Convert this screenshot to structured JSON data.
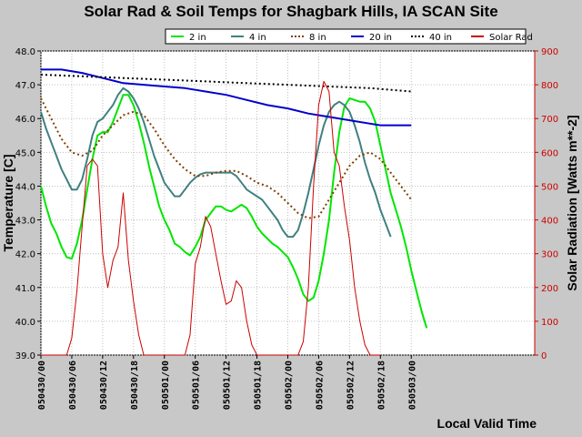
{
  "chart_data": {
    "type": "line",
    "title": "Solar Rad & Soil Temps for Shagbark Hills, IA SCAN Site",
    "xlabel": "Local Valid Time",
    "ylabel": "Temperature [C]",
    "y2label": "Solar Radiation [Watts m**-2]",
    "xlim": [
      0,
      96
    ],
    "ylim": [
      39.0,
      48.0
    ],
    "y2lim": [
      0,
      900
    ],
    "x_ticks": [
      {
        "x": 0,
        "label": "050430/00"
      },
      {
        "x": 6,
        "label": "050430/06"
      },
      {
        "x": 12,
        "label": "050430/12"
      },
      {
        "x": 18,
        "label": "050430/18"
      },
      {
        "x": 24,
        "label": "050501/00"
      },
      {
        "x": 30,
        "label": "050501/06"
      },
      {
        "x": 36,
        "label": "050501/12"
      },
      {
        "x": 42,
        "label": "050501/18"
      },
      {
        "x": 48,
        "label": "050502/00"
      },
      {
        "x": 54,
        "label": "050502/06"
      },
      {
        "x": 60,
        "label": "050502/12"
      },
      {
        "x": 66,
        "label": "050502/18"
      },
      {
        "x": 72,
        "label": "050503/00"
      }
    ],
    "y_ticks": [
      "39.0",
      "40.0",
      "41.0",
      "42.0",
      "43.0",
      "44.0",
      "45.0",
      "46.0",
      "47.0",
      "48.0"
    ],
    "y2_ticks": [
      "0",
      "100",
      "200",
      "300",
      "400",
      "500",
      "600",
      "700",
      "800",
      "900"
    ],
    "legend_position": "top",
    "series": [
      {
        "name": "2 in",
        "axis": "left",
        "color": "#00e600",
        "style": "solid",
        "points": [
          [
            0,
            44.0
          ],
          [
            1,
            43.4
          ],
          [
            2,
            42.9
          ],
          [
            3,
            42.6
          ],
          [
            4,
            42.2
          ],
          [
            5,
            41.9
          ],
          [
            6,
            41.85
          ],
          [
            7,
            42.3
          ],
          [
            8,
            43.0
          ],
          [
            9,
            43.9
          ],
          [
            10,
            44.8
          ],
          [
            11,
            45.5
          ],
          [
            12,
            45.6
          ],
          [
            13,
            45.6
          ],
          [
            14,
            45.9
          ],
          [
            15,
            46.3
          ],
          [
            16,
            46.7
          ],
          [
            17,
            46.7
          ],
          [
            18,
            46.4
          ],
          [
            19,
            45.9
          ],
          [
            20,
            45.3
          ],
          [
            21,
            44.6
          ],
          [
            22,
            44.0
          ],
          [
            23,
            43.4
          ],
          [
            24,
            43.0
          ],
          [
            25,
            42.7
          ],
          [
            26,
            42.3
          ],
          [
            27,
            42.2
          ],
          [
            28,
            42.05
          ],
          [
            29,
            41.95
          ],
          [
            30,
            42.2
          ],
          [
            31,
            42.5
          ],
          [
            32,
            43.0
          ],
          [
            33,
            43.2
          ],
          [
            34,
            43.4
          ],
          [
            35,
            43.4
          ],
          [
            36,
            43.3
          ],
          [
            37,
            43.25
          ],
          [
            38,
            43.35
          ],
          [
            39,
            43.45
          ],
          [
            40,
            43.35
          ],
          [
            41,
            43.1
          ],
          [
            42,
            42.8
          ],
          [
            43,
            42.6
          ],
          [
            44,
            42.45
          ],
          [
            45,
            42.3
          ],
          [
            46,
            42.2
          ],
          [
            47,
            42.05
          ],
          [
            48,
            41.9
          ],
          [
            49,
            41.6
          ],
          [
            50,
            41.25
          ],
          [
            51,
            40.8
          ],
          [
            52,
            40.6
          ],
          [
            53,
            40.7
          ],
          [
            54,
            41.2
          ],
          [
            55,
            42.0
          ],
          [
            56,
            43.0
          ],
          [
            57,
            44.4
          ],
          [
            58,
            45.6
          ],
          [
            59,
            46.35
          ],
          [
            60,
            46.6
          ],
          [
            61,
            46.55
          ],
          [
            62,
            46.5
          ],
          [
            63,
            46.5
          ],
          [
            64,
            46.3
          ],
          [
            65,
            45.9
          ],
          [
            66,
            45.2
          ],
          [
            67,
            44.5
          ],
          [
            68,
            43.8
          ],
          [
            69,
            43.3
          ],
          [
            70,
            42.8
          ],
          [
            71,
            42.2
          ],
          [
            72,
            41.5
          ],
          [
            73,
            40.9
          ],
          [
            74,
            40.3
          ],
          [
            75,
            39.8
          ]
        ]
      },
      {
        "name": "4 in",
        "axis": "left",
        "color": "#408080",
        "style": "solid",
        "points": [
          [
            0,
            46.2
          ],
          [
            1,
            45.7
          ],
          [
            2,
            45.3
          ],
          [
            3,
            44.9
          ],
          [
            4,
            44.5
          ],
          [
            5,
            44.2
          ],
          [
            6,
            43.9
          ],
          [
            7,
            43.9
          ],
          [
            8,
            44.2
          ],
          [
            9,
            44.8
          ],
          [
            10,
            45.5
          ],
          [
            11,
            45.9
          ],
          [
            12,
            46.0
          ],
          [
            13,
            46.2
          ],
          [
            14,
            46.4
          ],
          [
            15,
            46.7
          ],
          [
            16,
            46.9
          ],
          [
            17,
            46.8
          ],
          [
            18,
            46.6
          ],
          [
            19,
            46.3
          ],
          [
            20,
            45.9
          ],
          [
            21,
            45.4
          ],
          [
            22,
            44.9
          ],
          [
            23,
            44.5
          ],
          [
            24,
            44.1
          ],
          [
            25,
            43.9
          ],
          [
            26,
            43.7
          ],
          [
            27,
            43.7
          ],
          [
            28,
            43.9
          ],
          [
            29,
            44.1
          ],
          [
            30,
            44.25
          ],
          [
            31,
            44.35
          ],
          [
            32,
            44.4
          ],
          [
            33,
            44.4
          ],
          [
            34,
            44.4
          ],
          [
            35,
            44.4
          ],
          [
            36,
            44.4
          ],
          [
            37,
            44.4
          ],
          [
            38,
            44.3
          ],
          [
            39,
            44.1
          ],
          [
            40,
            43.9
          ],
          [
            41,
            43.8
          ],
          [
            42,
            43.7
          ],
          [
            43,
            43.6
          ],
          [
            44,
            43.4
          ],
          [
            45,
            43.2
          ],
          [
            46,
            43.0
          ],
          [
            47,
            42.7
          ],
          [
            48,
            42.5
          ],
          [
            49,
            42.5
          ],
          [
            50,
            42.7
          ],
          [
            51,
            43.2
          ],
          [
            52,
            43.8
          ],
          [
            53,
            44.5
          ],
          [
            54,
            45.2
          ],
          [
            55,
            45.8
          ],
          [
            56,
            46.2
          ],
          [
            57,
            46.4
          ],
          [
            58,
            46.5
          ],
          [
            59,
            46.4
          ],
          [
            60,
            46.2
          ],
          [
            61,
            45.8
          ],
          [
            62,
            45.3
          ],
          [
            63,
            44.7
          ],
          [
            64,
            44.2
          ],
          [
            65,
            43.8
          ],
          [
            66,
            43.3
          ],
          [
            67,
            42.9
          ],
          [
            68,
            42.5
          ]
        ]
      },
      {
        "name": "8 in",
        "axis": "left",
        "color": "#804000",
        "style": "dotted",
        "points": [
          [
            0,
            46.6
          ],
          [
            2,
            46.0
          ],
          [
            4,
            45.4
          ],
          [
            6,
            45.0
          ],
          [
            8,
            44.9
          ],
          [
            10,
            45.05
          ],
          [
            12,
            45.5
          ],
          [
            14,
            45.8
          ],
          [
            16,
            46.1
          ],
          [
            18,
            46.2
          ],
          [
            20,
            46.1
          ],
          [
            22,
            45.7
          ],
          [
            24,
            45.2
          ],
          [
            26,
            44.8
          ],
          [
            28,
            44.5
          ],
          [
            30,
            44.3
          ],
          [
            32,
            44.3
          ],
          [
            34,
            44.4
          ],
          [
            36,
            44.45
          ],
          [
            38,
            44.45
          ],
          [
            40,
            44.3
          ],
          [
            42,
            44.1
          ],
          [
            44,
            44.0
          ],
          [
            46,
            43.8
          ],
          [
            48,
            43.5
          ],
          [
            50,
            43.2
          ],
          [
            52,
            43.05
          ],
          [
            54,
            43.1
          ],
          [
            56,
            43.6
          ],
          [
            58,
            44.1
          ],
          [
            60,
            44.6
          ],
          [
            62,
            44.9
          ],
          [
            64,
            45.0
          ],
          [
            66,
            44.8
          ],
          [
            68,
            44.4
          ],
          [
            70,
            44.0
          ],
          [
            72,
            43.6
          ]
        ]
      },
      {
        "name": "20 in",
        "axis": "left",
        "color": "#0000cc",
        "style": "solid",
        "points": [
          [
            0,
            47.45
          ],
          [
            4,
            47.45
          ],
          [
            8,
            47.35
          ],
          [
            12,
            47.2
          ],
          [
            16,
            47.05
          ],
          [
            20,
            47.0
          ],
          [
            24,
            46.95
          ],
          [
            28,
            46.9
          ],
          [
            32,
            46.8
          ],
          [
            36,
            46.7
          ],
          [
            40,
            46.55
          ],
          [
            44,
            46.4
          ],
          [
            48,
            46.3
          ],
          [
            52,
            46.15
          ],
          [
            56,
            46.05
          ],
          [
            60,
            45.95
          ],
          [
            64,
            45.85
          ],
          [
            66,
            45.8
          ],
          [
            68,
            45.8
          ],
          [
            72,
            45.8
          ]
        ]
      },
      {
        "name": "40 in",
        "axis": "left",
        "color": "#000000",
        "style": "dotted",
        "points": [
          [
            0,
            47.3
          ],
          [
            8,
            47.25
          ],
          [
            16,
            47.2
          ],
          [
            24,
            47.15
          ],
          [
            32,
            47.1
          ],
          [
            40,
            47.05
          ],
          [
            48,
            47.0
          ],
          [
            56,
            46.95
          ],
          [
            64,
            46.9
          ],
          [
            72,
            46.8
          ]
        ]
      },
      {
        "name": "Solar Rad",
        "axis": "right",
        "color": "#cc0000",
        "style": "solid",
        "points": [
          [
            0,
            0
          ],
          [
            5,
            0
          ],
          [
            6,
            50
          ],
          [
            7,
            190
          ],
          [
            8,
            380
          ],
          [
            9,
            560
          ],
          [
            10,
            580
          ],
          [
            11,
            560
          ],
          [
            12,
            300
          ],
          [
            13,
            200
          ],
          [
            14,
            280
          ],
          [
            15,
            320
          ],
          [
            16,
            480
          ],
          [
            17,
            280
          ],
          [
            18,
            160
          ],
          [
            19,
            60
          ],
          [
            20,
            0
          ],
          [
            28,
            0
          ],
          [
            29,
            60
          ],
          [
            30,
            270
          ],
          [
            31,
            320
          ],
          [
            32,
            410
          ],
          [
            33,
            380
          ],
          [
            34,
            300
          ],
          [
            35,
            220
          ],
          [
            36,
            150
          ],
          [
            37,
            160
          ],
          [
            38,
            220
          ],
          [
            39,
            200
          ],
          [
            40,
            100
          ],
          [
            41,
            30
          ],
          [
            42,
            0
          ],
          [
            50,
            0
          ],
          [
            51,
            40
          ],
          [
            52,
            200
          ],
          [
            53,
            500
          ],
          [
            54,
            740
          ],
          [
            55,
            810
          ],
          [
            56,
            780
          ],
          [
            57,
            600
          ],
          [
            58,
            560
          ],
          [
            59,
            440
          ],
          [
            60,
            340
          ],
          [
            61,
            200
          ],
          [
            62,
            100
          ],
          [
            63,
            30
          ],
          [
            64,
            0
          ],
          [
            66,
            0
          ]
        ]
      }
    ]
  }
}
